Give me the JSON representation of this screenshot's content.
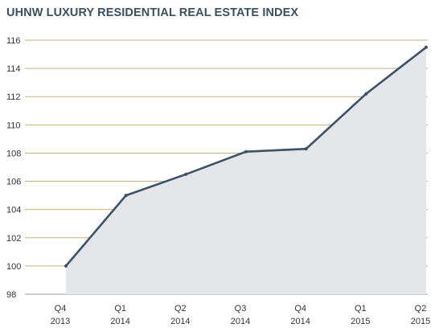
{
  "chart_data": {
    "type": "area",
    "title": "UHNW LUXURY RESIDENTIAL REAL ESTATE INDEX",
    "xlabel": "",
    "ylabel": "",
    "categories": [
      [
        "Q4",
        "2013"
      ],
      [
        "Q1",
        "2014"
      ],
      [
        "Q2",
        "2014"
      ],
      [
        "Q3",
        "2014"
      ],
      [
        "Q4",
        "2014"
      ],
      [
        "Q1",
        "2015"
      ],
      [
        "Q2",
        "2015"
      ]
    ],
    "values": [
      100.0,
      105.0,
      106.5,
      108.1,
      108.3,
      112.2,
      115.5
    ],
    "ylim": [
      98,
      116
    ],
    "yticks": [
      "98",
      "100",
      "102",
      "104",
      "106",
      "108",
      "110",
      "112",
      "114",
      "116"
    ],
    "grid": true,
    "colors": {
      "title": "#3a5060",
      "line": "#3d5266",
      "area": "#e5e6ea",
      "grid": "#c7b27c",
      "axis": "#999999"
    }
  }
}
